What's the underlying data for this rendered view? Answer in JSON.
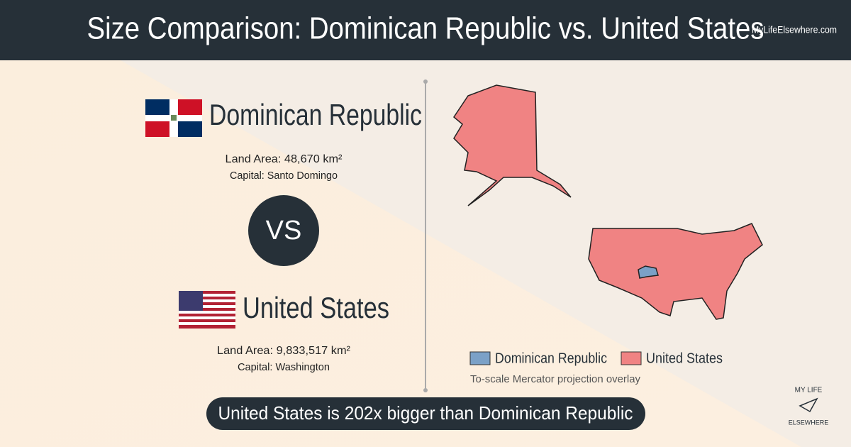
{
  "header": {
    "title": "Size Comparison: Dominican Republic vs. United States",
    "site": "MyLifeElsewhere.com"
  },
  "country_a": {
    "name": "Dominican Republic",
    "land_area": "Land Area: 48,670 km²",
    "capital": "Capital: Santo Domingo"
  },
  "versus": "VS",
  "country_b": {
    "name": "United States",
    "land_area": "Land Area: 9,833,517 km²",
    "capital": "Capital: Washington"
  },
  "legend": [
    {
      "name": "Dominican Republic",
      "color": "#7ba1c7"
    },
    {
      "name": "United States",
      "color": "#f08383"
    }
  ],
  "note": "To-scale Mercator projection overlay",
  "summary": "United States is 202x bigger than Dominican Republic",
  "logo": {
    "top": "MY LIFE",
    "bottom": "ELSEWHERE"
  }
}
